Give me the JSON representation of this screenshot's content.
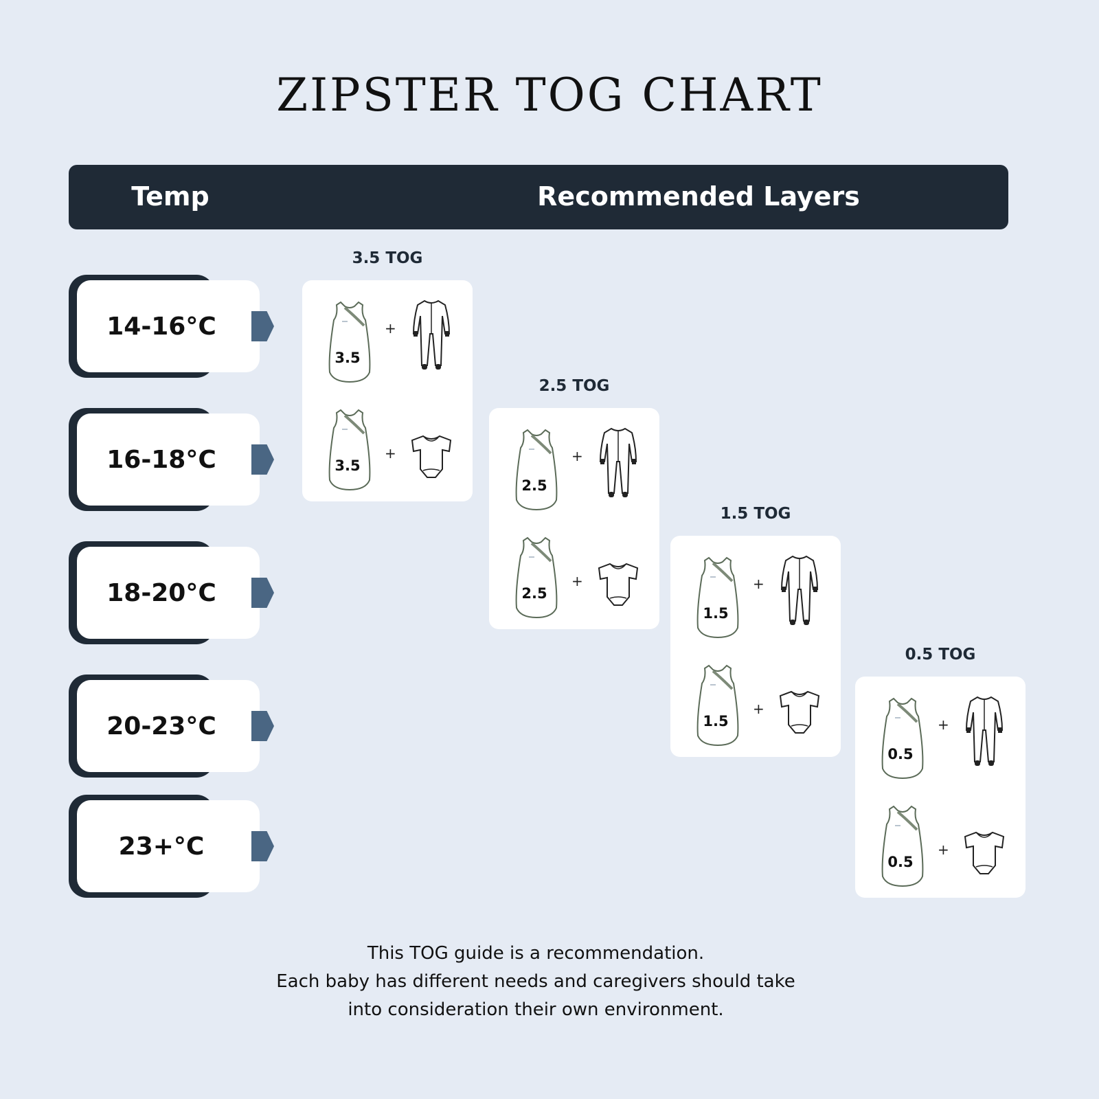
{
  "title": "ZIPSTER TOG CHART",
  "header": {
    "temp_label": "Temp",
    "layers_label": "Recommended Layers"
  },
  "temperatures": [
    "14-16°C",
    "16-18°C",
    "18-20°C",
    "20-23°C",
    "23+°C"
  ],
  "tog_groups": [
    {
      "label": "3.5 TOG",
      "combos": [
        {
          "sack": "3.5",
          "plus": "+",
          "garment": "sleepsuit-icon"
        },
        {
          "sack": "3.5",
          "plus": "+",
          "garment": "bodysuit-icon"
        }
      ]
    },
    {
      "label": "2.5 TOG",
      "combos": [
        {
          "sack": "2.5",
          "plus": "+",
          "garment": "sleepsuit-icon"
        },
        {
          "sack": "2.5",
          "plus": "+",
          "garment": "bodysuit-icon"
        }
      ]
    },
    {
      "label": "1.5 TOG",
      "combos": [
        {
          "sack": "1.5",
          "plus": "+",
          "garment": "sleepsuit-icon"
        },
        {
          "sack": "1.5",
          "plus": "+",
          "garment": "bodysuit-icon"
        }
      ]
    },
    {
      "label": "0.5 TOG",
      "combos": [
        {
          "sack": "0.5",
          "plus": "+",
          "garment": "sleepsuit-icon"
        },
        {
          "sack": "0.5",
          "plus": "+",
          "garment": "bodysuit-icon"
        }
      ]
    }
  ],
  "footer": {
    "lines": [
      "This TOG guide is a recommendation.",
      "Each baby has different needs and caregivers should take",
      "into consideration their own environment."
    ]
  },
  "colors": {
    "background": "#e5ebf4",
    "dark": "#1f2a36",
    "arrow": "#4a6683",
    "sack_outline": "#5b6b58"
  }
}
